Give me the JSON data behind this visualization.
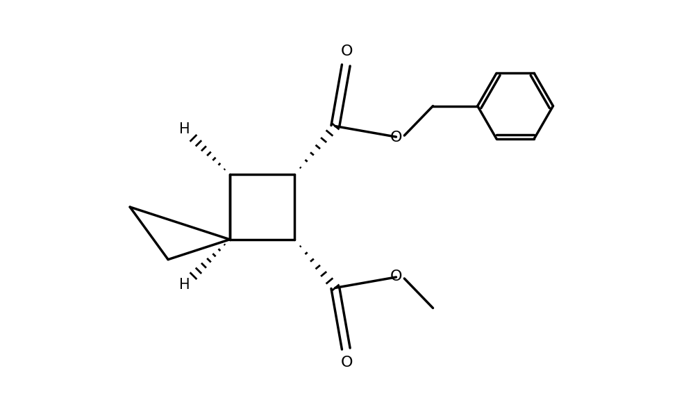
{
  "background_color": "#ffffff",
  "line_color": "#000000",
  "line_width": 2.5,
  "fig_width": 9.98,
  "fig_height": 5.96,
  "dpi": 100,
  "xlim": [
    0,
    10
  ],
  "ylim": [
    0,
    6
  ]
}
